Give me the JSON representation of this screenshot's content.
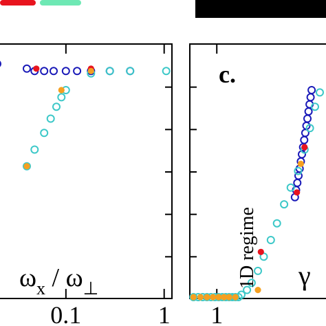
{
  "chart_data": [
    {
      "type": "scatter",
      "panel_label": "",
      "xlabel_parts": [
        "ω",
        "x",
        " / ω",
        "⊥"
      ],
      "x_scale": "log",
      "xlim": [
        0.02,
        1.2
      ],
      "ylim": [
        0,
        1
      ],
      "tick_labels": [
        "0.1",
        "1"
      ],
      "tick_values": [
        0.1,
        1
      ],
      "series": [
        {
          "marker": "open-circle",
          "color": "#1a1ab8",
          "points": [
            [
              0.02,
              0.98
            ],
            [
              0.04,
              0.96
            ],
            [
              0.048,
              0.95
            ],
            [
              0.06,
              0.95
            ],
            [
              0.075,
              0.95
            ],
            [
              0.1,
              0.95
            ],
            [
              0.13,
              0.95
            ],
            [
              0.18,
              0.95
            ],
            [
              0.28,
              0.95
            ],
            [
              0.45,
              0.95
            ]
          ]
        },
        {
          "marker": "open-circle",
          "color": "#3cc8c8",
          "points": [
            [
              0.04,
              0.55
            ],
            [
              0.048,
              0.62
            ],
            [
              0.06,
              0.69
            ],
            [
              0.07,
              0.75
            ],
            [
              0.08,
              0.8
            ],
            [
              0.09,
              0.84
            ],
            [
              0.1,
              0.87
            ],
            [
              0.18,
              0.94
            ],
            [
              0.28,
              0.95
            ],
            [
              0.45,
              0.95
            ],
            [
              1.05,
              0.95
            ]
          ]
        },
        {
          "marker": "filled-circle",
          "color": "#e8141e",
          "points": [
            [
              0.05,
              0.96
            ],
            [
              0.18,
              0.96
            ]
          ]
        },
        {
          "marker": "filled-circle",
          "color": "#f5a020",
          "points": [
            [
              0.04,
              0.55
            ],
            [
              0.09,
              0.87
            ],
            [
              0.18,
              0.95
            ]
          ]
        }
      ]
    },
    {
      "type": "scatter",
      "panel_label": "c.",
      "xlabel": "γ",
      "annotation": "1D regime",
      "x_scale": "log",
      "xlim": [
        0.75,
        3.5
      ],
      "ylim": [
        0,
        1
      ],
      "tick_labels": [
        "1"
      ],
      "tick_values": [
        1
      ],
      "series": [
        {
          "marker": "open-circle",
          "color": "#1a1ab8",
          "points": [
            [
              2.3,
              0.42
            ],
            [
              2.33,
              0.45
            ],
            [
              2.36,
              0.48
            ],
            [
              2.39,
              0.51
            ],
            [
              2.42,
              0.54
            ],
            [
              2.45,
              0.57
            ],
            [
              2.48,
              0.6
            ],
            [
              2.51,
              0.63
            ],
            [
              2.54,
              0.66
            ],
            [
              2.57,
              0.69
            ],
            [
              2.6,
              0.72
            ],
            [
              2.63,
              0.75
            ],
            [
              2.66,
              0.78
            ],
            [
              2.69,
              0.81
            ],
            [
              2.72,
              0.84
            ],
            [
              2.75,
              0.87
            ]
          ]
        },
        {
          "marker": "open-circle",
          "color": "#3cc8c8",
          "points": [
            [
              0.78,
              0.0
            ],
            [
              0.82,
              0.0
            ],
            [
              0.86,
              0.0
            ],
            [
              0.9,
              0.0
            ],
            [
              0.94,
              0.0
            ],
            [
              0.98,
              0.0
            ],
            [
              1.02,
              0.0
            ],
            [
              1.06,
              0.0
            ],
            [
              1.1,
              0.0
            ],
            [
              1.14,
              0.0
            ],
            [
              1.18,
              0.0
            ],
            [
              1.22,
              0.0
            ],
            [
              1.26,
              0.0
            ],
            [
              1.3,
              0.01
            ],
            [
              1.38,
              0.03
            ],
            [
              1.45,
              0.06
            ],
            [
              1.55,
              0.11
            ],
            [
              1.65,
              0.17
            ],
            [
              1.78,
              0.24
            ],
            [
              1.9,
              0.31
            ],
            [
              2.05,
              0.39
            ],
            [
              2.2,
              0.46
            ],
            [
              2.38,
              0.53
            ],
            [
              2.55,
              0.62
            ],
            [
              2.7,
              0.71
            ],
            [
              2.85,
              0.8
            ],
            [
              3.0,
              0.86
            ]
          ]
        },
        {
          "marker": "filled-circle",
          "color": "#e8141e",
          "points": [
            [
              1.6,
              0.19
            ],
            [
              2.35,
              0.44
            ],
            [
              2.55,
              0.63
            ]
          ]
        },
        {
          "marker": "filled-circle",
          "color": "#f5a020",
          "points": [
            [
              0.78,
              0.0
            ],
            [
              0.84,
              0.0
            ],
            [
              0.9,
              0.0
            ],
            [
              0.96,
              0.0
            ],
            [
              1.02,
              0.0
            ],
            [
              1.08,
              0.0
            ],
            [
              1.14,
              0.0
            ],
            [
              1.22,
              0.0
            ],
            [
              1.55,
              0.03
            ],
            [
              2.45,
              0.56
            ]
          ]
        }
      ]
    }
  ]
}
